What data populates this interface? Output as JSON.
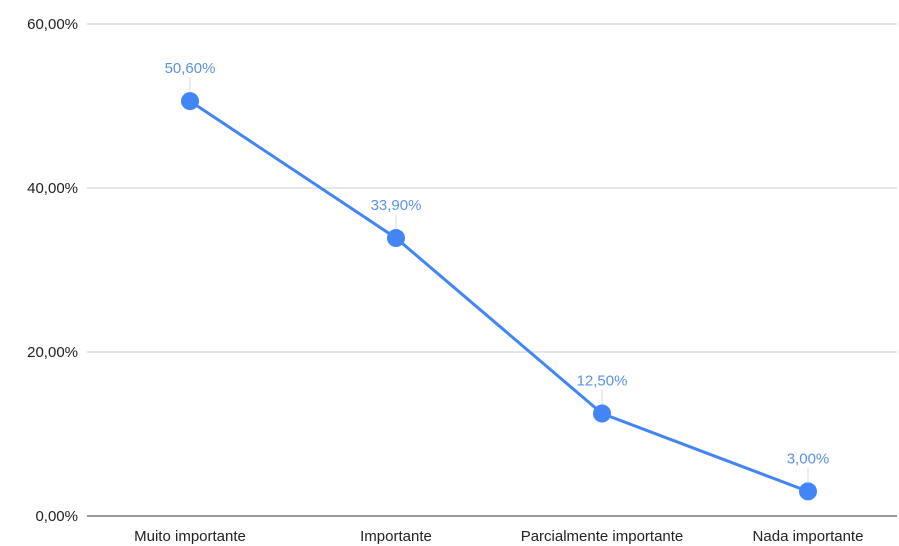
{
  "chart_data": {
    "type": "line",
    "categories": [
      "Muito importante",
      "Importante",
      "Parcialmente importante",
      "Nada importante"
    ],
    "values": [
      50.6,
      33.9,
      12.5,
      3.0
    ],
    "data_labels": [
      "50,60%",
      "33,90%",
      "12,50%",
      "3,00%"
    ],
    "yticks": [
      "0,00%",
      "20,00%",
      "40,00%",
      "60,00%"
    ],
    "ylim": [
      0,
      60
    ],
    "grid": true,
    "colors": {
      "series": "#4285f4",
      "data_label": "#5b92e5",
      "gridline": "#cccccc"
    }
  }
}
